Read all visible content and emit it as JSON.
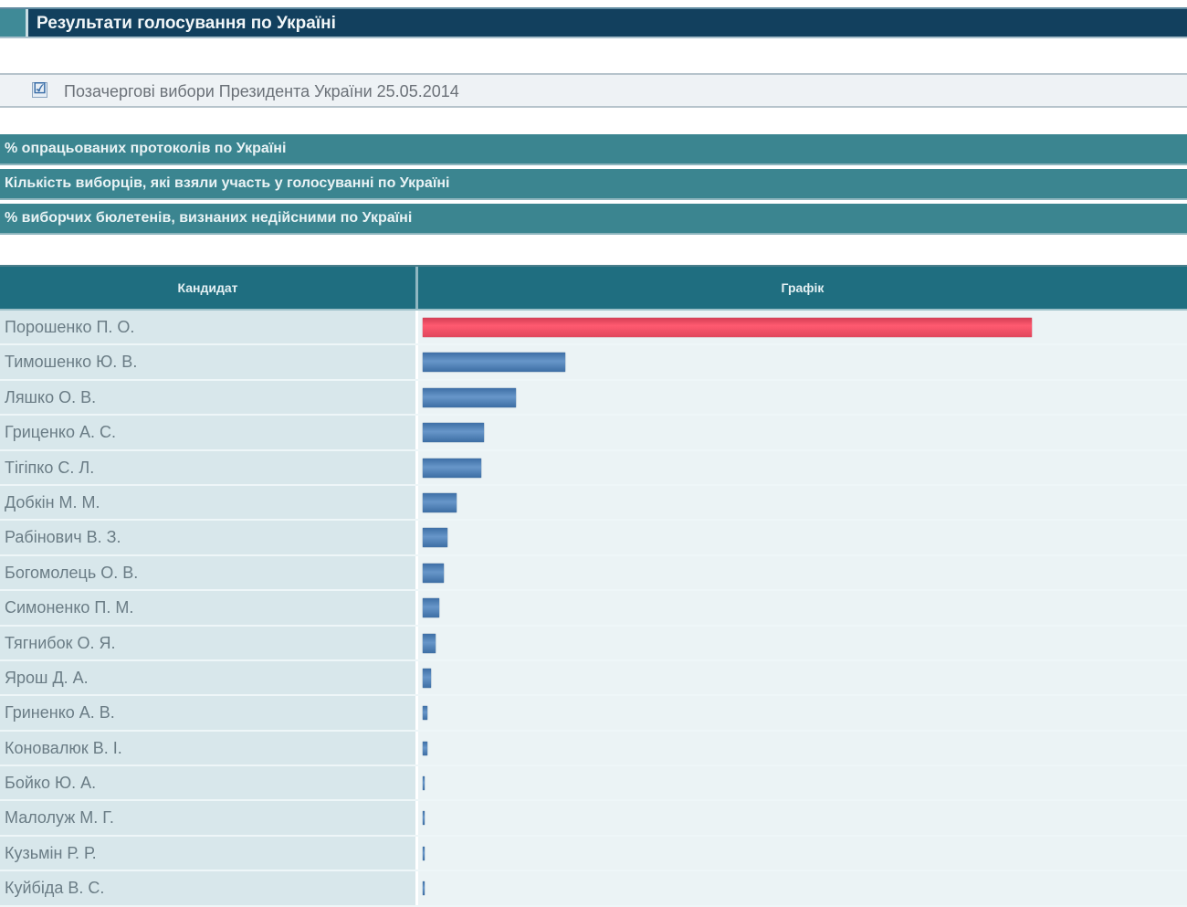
{
  "header": {
    "title": "Результати голосування по Україні"
  },
  "election": {
    "checked": "☑",
    "label": "Позачергові вибори Президента України 25.05.2014"
  },
  "sections": [
    {
      "label": "% опрацьованих протоколів по Україні"
    },
    {
      "label": "Кількість виборців, які взяли участь у голосуванні по Україні"
    },
    {
      "label": "% виборчих бюлетенів, визнаних недійсними по Україні"
    }
  ],
  "table": {
    "col_candidate": "Кандидат",
    "col_chart": "Графік"
  },
  "colors": {
    "leader": "#ff5a70",
    "others": "#4f80b8",
    "header": "#1f6e80"
  },
  "chart_data": {
    "type": "bar",
    "orientation": "horizontal",
    "title": "Графік",
    "xlabel": "",
    "ylabel": "Кандидат",
    "categories": [
      "Порошенко П. О.",
      "Тимошенко Ю. В.",
      "Ляшко О. В.",
      "Гриценко А. С.",
      "Тігіпко С. Л.",
      "Добкін М. М.",
      "Рабінович В. З.",
      "Богомолець О. В.",
      "Симоненко П. М.",
      "Тягнибок О. Я.",
      "Ярош Д. А.",
      "Гриненко А. В.",
      "Коновалюк В. І.",
      "Бойко Ю. А.",
      "Малолуж М. Г.",
      "Кузьмін Р. Р.",
      "Куйбіда В. С."
    ],
    "values": [
      54.7,
      12.81,
      8.32,
      5.48,
      5.23,
      3.03,
      2.25,
      1.91,
      1.51,
      1.16,
      0.7,
      0.4,
      0.38,
      0.19,
      0.13,
      0.1,
      0.06
    ],
    "xlim": [
      0,
      100
    ],
    "grid": false,
    "legend": "none"
  }
}
